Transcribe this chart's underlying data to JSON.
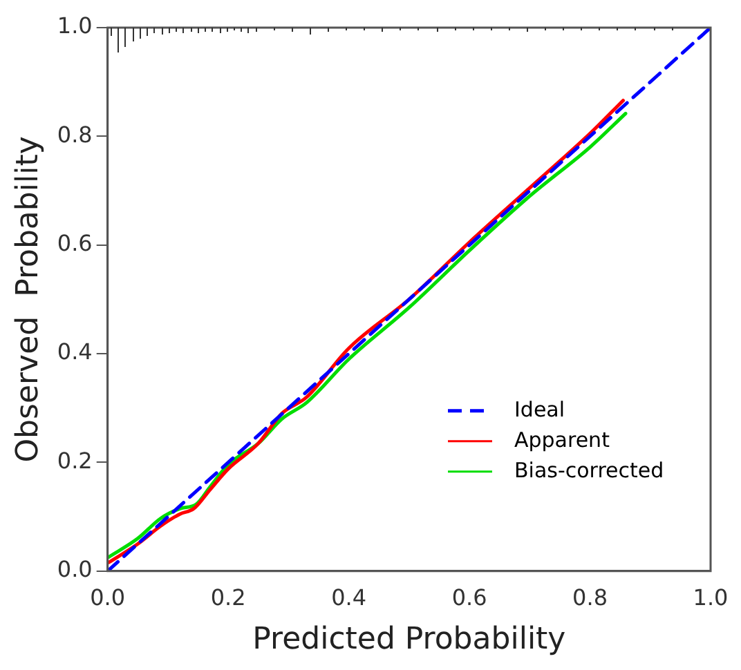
{
  "chart_data": {
    "type": "line",
    "xlabel": "Predicted Probability",
    "ylabel": "Observed  Probability",
    "xlim": [
      0,
      1
    ],
    "ylim": [
      0,
      1
    ],
    "xticks": [
      {
        "value": 0,
        "label": "0.0"
      },
      {
        "value": 0.2,
        "label": "0.2"
      },
      {
        "value": 0.4,
        "label": "0.4"
      },
      {
        "value": 0.6,
        "label": "0.6"
      },
      {
        "value": 0.8,
        "label": "0.8"
      },
      {
        "value": 1,
        "label": "1.0"
      }
    ],
    "yticks": [
      {
        "value": 0,
        "label": "0.0"
      },
      {
        "value": 0.2,
        "label": "0.2"
      },
      {
        "value": 0.4,
        "label": "0.4"
      },
      {
        "value": 0.6,
        "label": "0.6"
      },
      {
        "value": 0.8,
        "label": "0.8"
      },
      {
        "value": 1,
        "label": "1.0"
      }
    ],
    "grid": false,
    "legend": "bottom right",
    "marker": "none",
    "series": [
      {
        "name": "Ideal",
        "color": "#0000ff",
        "line_style": "dashed",
        "x": [
          0,
          1
        ],
        "values": [
          0,
          1
        ]
      },
      {
        "name": "Apparent",
        "color": "#ff0000",
        "line_style": "solid",
        "x": [
          0.002,
          0.05,
          0.088,
          0.12,
          0.143,
          0.17,
          0.2,
          0.25,
          0.289,
          0.33,
          0.4,
          0.5,
          0.6,
          0.7,
          0.8,
          0.855
        ],
        "values": [
          0.016,
          0.05,
          0.083,
          0.105,
          0.115,
          0.15,
          0.188,
          0.235,
          0.29,
          0.32,
          0.41,
          0.5,
          0.605,
          0.705,
          0.805,
          0.866
        ]
      },
      {
        "name": "Bias-corrected",
        "color": "#00dd00",
        "line_style": "solid",
        "x": [
          0.002,
          0.05,
          0.088,
          0.12,
          0.147,
          0.17,
          0.2,
          0.25,
          0.289,
          0.33,
          0.4,
          0.5,
          0.6,
          0.7,
          0.8,
          0.859
        ],
        "values": [
          0.026,
          0.06,
          0.097,
          0.115,
          0.123,
          0.155,
          0.196,
          0.235,
          0.28,
          0.31,
          0.39,
          0.485,
          0.59,
          0.69,
          0.78,
          0.842
        ]
      }
    ]
  }
}
